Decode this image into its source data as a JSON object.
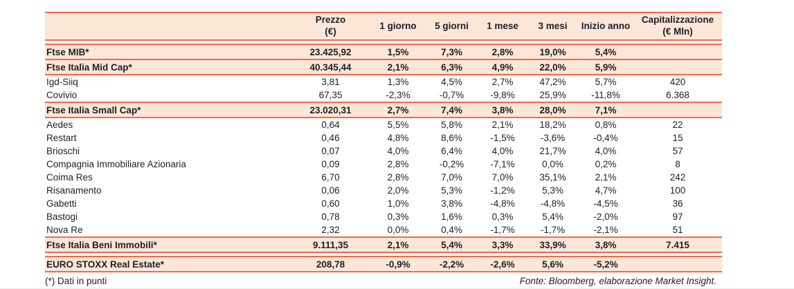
{
  "colors": {
    "accent_line": "#EF6950",
    "row_background": "#FBE6D7",
    "text": "#202028"
  },
  "table": {
    "header": [
      {
        "line1": "",
        "line2": ""
      },
      {
        "line1": "Prezzo",
        "line2": "(€)"
      },
      {
        "line1": "1 giorno",
        "line2": ""
      },
      {
        "line1": "5 giorni",
        "line2": ""
      },
      {
        "line1": "1 mese",
        "line2": ""
      },
      {
        "line1": "3 mesi",
        "line2": ""
      },
      {
        "line1": "Inizio anno",
        "line2": ""
      },
      {
        "line1": "Capitalizzazione",
        "line2": "(€ Mln)"
      }
    ],
    "rows": [
      {
        "style": "index",
        "gap_before": true,
        "cells": [
          "Ftse MIB*",
          "23.425,92",
          "1,5%",
          "7,3%",
          "2,8%",
          "19,0%",
          "5,4%",
          ""
        ]
      },
      {
        "style": "index",
        "gap_before": false,
        "cells": [
          "Ftse Italia Mid Cap*",
          "40.345,44",
          "2,1%",
          "6,3%",
          "4,9%",
          "22,0%",
          "5,9%",
          ""
        ]
      },
      {
        "style": "stock",
        "gap_before": false,
        "cells": [
          "Igd-Siiq",
          "3,81",
          "1,3%",
          "4,5%",
          "2,7%",
          "47,2%",
          "5,7%",
          "420"
        ]
      },
      {
        "style": "stock",
        "gap_before": false,
        "cells": [
          "Covivio",
          "67,35",
          "-2,3%",
          "-0,7%",
          "-9,8%",
          "25,9%",
          "-11,8%",
          "6.368"
        ]
      },
      {
        "style": "index",
        "gap_before": false,
        "cells": [
          "Ftse Italia Small Cap*",
          "23.020,31",
          "2,7%",
          "7,4%",
          "3,8%",
          "28,0%",
          "7,1%",
          ""
        ]
      },
      {
        "style": "stock",
        "gap_before": false,
        "cells": [
          "Aedes",
          "0,64",
          "5,5%",
          "5,8%",
          "2,1%",
          "18,2%",
          "0,8%",
          "22"
        ]
      },
      {
        "style": "stock",
        "gap_before": false,
        "cells": [
          "Restart",
          "0,46",
          "4,8%",
          "8,6%",
          "-1,5%",
          "-3,6%",
          "-0,4%",
          "15"
        ]
      },
      {
        "style": "stock",
        "gap_before": false,
        "cells": [
          "Brioschi",
          "0,07",
          "4,0%",
          "6,4%",
          "4,0%",
          "21,7%",
          "4,0%",
          "57"
        ]
      },
      {
        "style": "stock",
        "gap_before": false,
        "cells": [
          "Compagnia Immobiliare Azionaria",
          "0,09",
          "2,8%",
          "-0,2%",
          "-7,1%",
          "0,0%",
          "0,2%",
          "8"
        ]
      },
      {
        "style": "stock",
        "gap_before": false,
        "cells": [
          "Coima Res",
          "6,70",
          "2,8%",
          "7,0%",
          "7,0%",
          "35,1%",
          "2,1%",
          "242"
        ]
      },
      {
        "style": "stock",
        "gap_before": false,
        "cells": [
          "Risanamento",
          "0,06",
          "2,0%",
          "5,3%",
          "-1,2%",
          "5,3%",
          "4,7%",
          "100"
        ]
      },
      {
        "style": "stock",
        "gap_before": false,
        "cells": [
          "Gabetti",
          "0,60",
          "1,0%",
          "3,8%",
          "-4,8%",
          "-4,8%",
          "-4,5%",
          "36"
        ]
      },
      {
        "style": "stock",
        "gap_before": false,
        "cells": [
          "Bastogi",
          "0,78",
          "0,3%",
          "1,6%",
          "0,3%",
          "5,4%",
          "-2,0%",
          "97"
        ]
      },
      {
        "style": "stock",
        "gap_before": false,
        "cells": [
          "Nova Re",
          "2,32",
          "0,0%",
          "0,4%",
          "-1,7%",
          "-1,7%",
          "-2,1%",
          "51"
        ]
      },
      {
        "style": "index",
        "gap_before": false,
        "cells": [
          "Ftse Italia Beni Immobili*",
          "9.111,35",
          "2,1%",
          "5,4%",
          "3,3%",
          "33,9%",
          "3,8%",
          "7.415"
        ]
      },
      {
        "style": "index",
        "gap_before": true,
        "cells": [
          "EURO STOXX Real Estate*",
          "208,78",
          "-0,9%",
          "-2,2%",
          "-2,6%",
          "5,6%",
          "-5,2%",
          ""
        ]
      }
    ]
  },
  "footer": {
    "note": "(*) Dati in punti",
    "source": "Fonte: Bloomberg, elaborazione Market Insight."
  }
}
